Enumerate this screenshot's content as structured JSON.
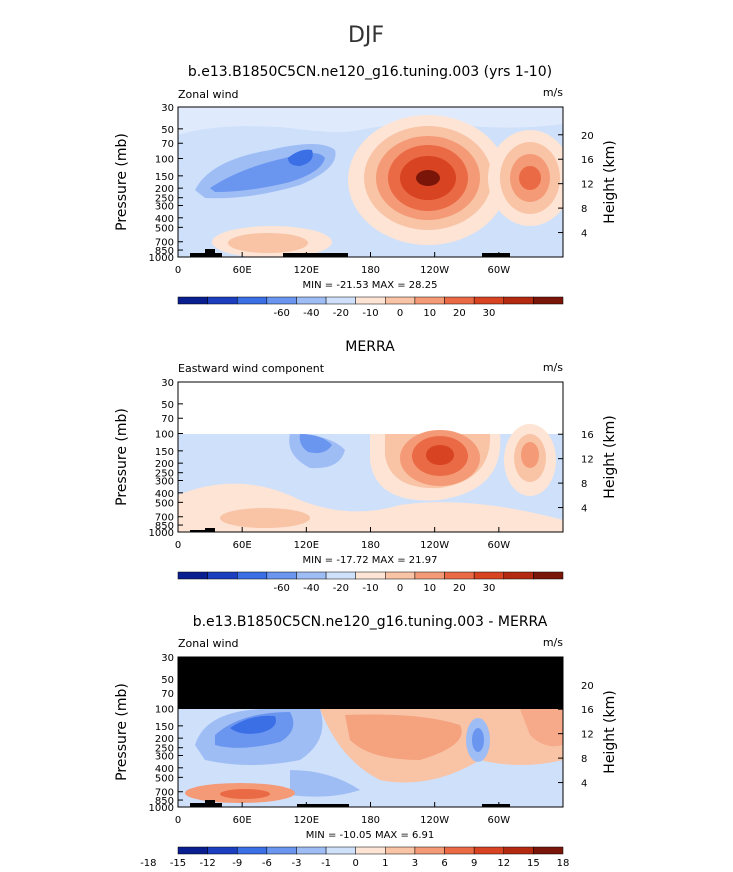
{
  "page_title": "DJF",
  "panels": [
    {
      "title": "b.e13.B1850C5CN.ne120_g16.tuning.003 (yrs 1-10)",
      "left_label": "Zonal wind",
      "units": "m/s",
      "minmax_text": "MIN = -21.53   MAX =  28.25",
      "colorbar_labels": [
        "-60",
        "-40",
        "-20",
        "-10",
        "0",
        "10",
        "20",
        "30"
      ]
    },
    {
      "title": "MERRA",
      "left_label": "Eastward wind component",
      "units": "m/s",
      "minmax_text": "MIN = -17.72   MAX =  21.97",
      "colorbar_labels": [
        "-60",
        "-40",
        "-20",
        "-10",
        "0",
        "10",
        "20",
        "30"
      ]
    },
    {
      "title": "b.e13.B1850C5CN.ne120_g16.tuning.003 - MERRA",
      "left_label": "Zonal wind",
      "units": "m/s",
      "minmax_text": "MIN = -10.05   MAX =    6.91",
      "colorbar_labels": [
        "-18",
        "-15",
        "-12",
        "-9",
        "-6",
        "-3",
        "-1",
        "0",
        "1",
        "3",
        "6",
        "9",
        "12",
        "15",
        "18"
      ]
    }
  ],
  "axes": {
    "ylabel_left": "Pressure (mb)",
    "ylabel_right": "Height (km)",
    "y_ticks": [
      "30",
      "50",
      "70",
      "100",
      "150",
      "200",
      "250",
      "300",
      "400",
      "500",
      "700",
      "850",
      "1000"
    ],
    "x_ticks": [
      "0",
      "60E",
      "120E",
      "180",
      "120W",
      "60W"
    ]
  },
  "chart_data": [
    {
      "type": "heatmap",
      "title": "b.e13.B1850C5CN.ne120_g16.tuning.003 (yrs 1-10)",
      "variable": "Zonal wind",
      "units": "m/s",
      "x": [
        0,
        60,
        120,
        180,
        240,
        300
      ],
      "y_pressure_mb": [
        30,
        50,
        70,
        100,
        150,
        200,
        250,
        300,
        400,
        500,
        700,
        850,
        1000
      ],
      "height_km_ticks": [
        4,
        8,
        12,
        16,
        20
      ],
      "min": -21.53,
      "max": 28.25,
      "features": [
        {
          "lon": 240,
          "pressure": 150,
          "value": 28
        },
        {
          "lon": 330,
          "pressure": 150,
          "value": 18
        },
        {
          "lon": 120,
          "pressure": 100,
          "value": -21
        },
        {
          "lon": 70,
          "pressure": 700,
          "value": 8
        }
      ]
    },
    {
      "type": "heatmap",
      "title": "MERRA",
      "variable": "Eastward wind component",
      "units": "m/s",
      "x": [
        0,
        60,
        120,
        180,
        240,
        300
      ],
      "y_pressure_mb": [
        30,
        50,
        70,
        100,
        150,
        200,
        250,
        300,
        400,
        500,
        700,
        850,
        1000
      ],
      "height_km_ticks": [
        4,
        8,
        12,
        16
      ],
      "min": -17.72,
      "max": 21.97,
      "features": [
        {
          "lon": 240,
          "pressure": 150,
          "value": 21
        },
        {
          "lon": 330,
          "pressure": 150,
          "value": 14
        },
        {
          "lon": 120,
          "pressure": 100,
          "value": -17
        }
      ]
    },
    {
      "type": "heatmap",
      "title": "b.e13.B1850C5CN.ne120_g16.tuning.003 - MERRA",
      "variable": "Zonal wind",
      "units": "m/s",
      "x": [
        0,
        60,
        120,
        180,
        240,
        300
      ],
      "y_pressure_mb": [
        30,
        50,
        70,
        100,
        150,
        200,
        250,
        300,
        400,
        500,
        700,
        850,
        1000
      ],
      "height_km_ticks": [
        4,
        8,
        12,
        16,
        20
      ],
      "min": -10.05,
      "max": 6.91,
      "features": [
        {
          "lon": 70,
          "pressure": 150,
          "value": -10
        },
        {
          "lon": 210,
          "pressure": 150,
          "value": 5
        },
        {
          "lon": 300,
          "pressure": 250,
          "value": -6
        },
        {
          "lon": 70,
          "pressure": 700,
          "value": 6
        }
      ]
    }
  ],
  "colors": {
    "scale": [
      "#0a1f8f",
      "#1c3fbf",
      "#3b6fe6",
      "#6b96f0",
      "#9fbdf5",
      "#cfe0fb",
      "#fde4d4",
      "#f9c3a6",
      "#f49a76",
      "#ea6a45",
      "#d84322",
      "#b42a10",
      "#7a150a"
    ]
  }
}
